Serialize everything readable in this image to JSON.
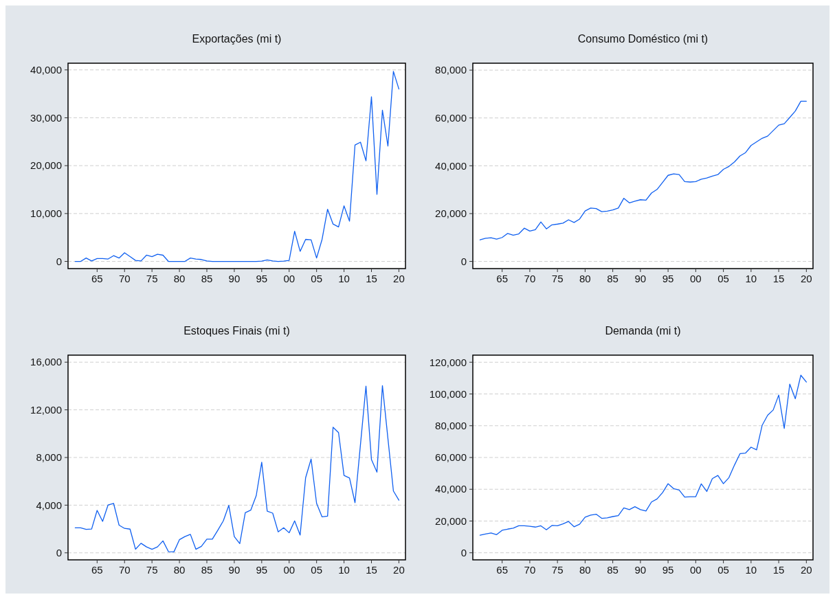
{
  "chart_data": [
    {
      "type": "line",
      "title": "Exportações (mi t)",
      "grid": "y",
      "x": [
        1961,
        1962,
        1963,
        1964,
        1965,
        1966,
        1967,
        1968,
        1969,
        1970,
        1971,
        1972,
        1973,
        1974,
        1975,
        1976,
        1977,
        1978,
        1979,
        1980,
        1981,
        1982,
        1983,
        1984,
        1985,
        1986,
        1987,
        1988,
        1989,
        1990,
        1991,
        1992,
        1993,
        1994,
        1995,
        1996,
        1997,
        1998,
        1999,
        2000,
        2001,
        2002,
        2003,
        2004,
        2005,
        2006,
        2007,
        2008,
        2009,
        2010,
        2011,
        2012,
        2013,
        2014,
        2015,
        2016,
        2017,
        2018,
        2019,
        2020
      ],
      "series": [
        {
          "color": "#1060f0",
          "values": [
            0,
            0,
            700,
            100,
            600,
            600,
            500,
            1200,
            700,
            1800,
            1000,
            200,
            100,
            1300,
            1000,
            1500,
            1300,
            0,
            0,
            0,
            0,
            700,
            500,
            400,
            100,
            0,
            0,
            0,
            0,
            0,
            0,
            0,
            0,
            0,
            50,
            300,
            100,
            0,
            50,
            200,
            6300,
            2100,
            4600,
            4500,
            700,
            4600,
            10900,
            7800,
            7200,
            11600,
            8400,
            24300,
            24900,
            21000,
            34400,
            14000,
            31600,
            24100,
            39700,
            36000
          ]
        }
      ],
      "xlim": [
        1959.7,
        2021.2
      ],
      "xticks": [
        {
          "value": 1965,
          "label": "65"
        },
        {
          "value": 1970,
          "label": "70"
        },
        {
          "value": 1975,
          "label": "75"
        },
        {
          "value": 1980,
          "label": "80"
        },
        {
          "value": 1985,
          "label": "85"
        },
        {
          "value": 1990,
          "label": "90"
        },
        {
          "value": 1995,
          "label": "95"
        },
        {
          "value": 2000,
          "label": "00"
        },
        {
          "value": 2005,
          "label": "05"
        },
        {
          "value": 2010,
          "label": "10"
        },
        {
          "value": 2015,
          "label": "15"
        },
        {
          "value": 2020,
          "label": "20"
        }
      ],
      "ylim": [
        -1500,
        41400
      ],
      "yticks": [
        {
          "value": 0,
          "label": "0"
        },
        {
          "value": 10000,
          "label": "10,000"
        },
        {
          "value": 20000,
          "label": "20,000"
        },
        {
          "value": 30000,
          "label": "30,000"
        },
        {
          "value": 40000,
          "label": "40,000"
        }
      ]
    },
    {
      "type": "line",
      "title": "Consumo Doméstico (mi t)",
      "grid": "y",
      "x": [
        1961,
        1962,
        1963,
        1964,
        1965,
        1966,
        1967,
        1968,
        1969,
        1970,
        1971,
        1972,
        1973,
        1974,
        1975,
        1976,
        1977,
        1978,
        1979,
        1980,
        1981,
        1982,
        1983,
        1984,
        1985,
        1986,
        1987,
        1988,
        1989,
        1990,
        1991,
        1992,
        1993,
        1994,
        1995,
        1996,
        1997,
        1998,
        1999,
        2000,
        2001,
        2002,
        2003,
        2004,
        2005,
        2006,
        2007,
        2008,
        2009,
        2010,
        2011,
        2012,
        2013,
        2014,
        2015,
        2016,
        2017,
        2018,
        2019,
        2020
      ],
      "series": [
        {
          "color": "#1060f0",
          "values": [
            9000,
            9700,
            9900,
            9300,
            10000,
            11700,
            11000,
            11500,
            13900,
            12700,
            13300,
            16500,
            13600,
            15300,
            15600,
            16000,
            17400,
            16300,
            17700,
            21100,
            22300,
            22100,
            20800,
            21000,
            21500,
            22300,
            26400,
            24500,
            25200,
            25800,
            25600,
            28600,
            30100,
            33000,
            36000,
            36600,
            36300,
            33400,
            33200,
            33400,
            34400,
            34900,
            35700,
            36300,
            38500,
            39700,
            41600,
            44100,
            45500,
            48500,
            50000,
            51500,
            52400,
            54700,
            57000,
            57600,
            60200,
            62900,
            67000,
            67000
          ]
        }
      ],
      "xlim": [
        1959.7,
        2021.2
      ],
      "xticks": [
        {
          "value": 1965,
          "label": "65"
        },
        {
          "value": 1970,
          "label": "70"
        },
        {
          "value": 1975,
          "label": "75"
        },
        {
          "value": 1980,
          "label": "80"
        },
        {
          "value": 1985,
          "label": "85"
        },
        {
          "value": 1990,
          "label": "90"
        },
        {
          "value": 1995,
          "label": "95"
        },
        {
          "value": 2000,
          "label": "00"
        },
        {
          "value": 2005,
          "label": "05"
        },
        {
          "value": 2010,
          "label": "10"
        },
        {
          "value": 2015,
          "label": "15"
        },
        {
          "value": 2020,
          "label": "20"
        }
      ],
      "ylim": [
        -3000,
        82900
      ],
      "yticks": [
        {
          "value": 0,
          "label": "0"
        },
        {
          "value": 20000,
          "label": "20,000"
        },
        {
          "value": 40000,
          "label": "40,000"
        },
        {
          "value": 60000,
          "label": "60,000"
        },
        {
          "value": 80000,
          "label": "80,000"
        }
      ]
    },
    {
      "type": "line",
      "title": "Estoques Finais (mi t)",
      "grid": "y",
      "x": [
        1961,
        1962,
        1963,
        1964,
        1965,
        1966,
        1967,
        1968,
        1969,
        1970,
        1971,
        1972,
        1973,
        1974,
        1975,
        1976,
        1977,
        1978,
        1979,
        1980,
        1981,
        1982,
        1983,
        1984,
        1985,
        1986,
        1987,
        1988,
        1989,
        1990,
        1991,
        1992,
        1993,
        1994,
        1995,
        1996,
        1997,
        1998,
        1999,
        2000,
        2001,
        2002,
        2003,
        2004,
        2005,
        2006,
        2007,
        2008,
        2009,
        2010,
        2011,
        2012,
        2013,
        2014,
        2015,
        2016,
        2017,
        2018,
        2019,
        2020
      ],
      "series": [
        {
          "color": "#1060f0",
          "values": [
            2100,
            2100,
            1970,
            2000,
            3560,
            2640,
            4020,
            4150,
            2320,
            2050,
            1990,
            300,
            800,
            500,
            300,
            500,
            1000,
            100,
            80,
            1100,
            1360,
            1550,
            300,
            540,
            1150,
            1150,
            1900,
            2680,
            3980,
            1360,
            770,
            3370,
            3580,
            4800,
            7600,
            3500,
            3330,
            1760,
            2100,
            1680,
            2680,
            1490,
            6300,
            7870,
            4150,
            3020,
            3080,
            10540,
            10090,
            6490,
            6280,
            4210,
            9100,
            13990,
            7830,
            6770,
            14030,
            9590,
            5190,
            4420
          ]
        }
      ],
      "xlim": [
        1959.7,
        2021.2
      ],
      "xticks": [
        {
          "value": 1965,
          "label": "65"
        },
        {
          "value": 1970,
          "label": "70"
        },
        {
          "value": 1975,
          "label": "75"
        },
        {
          "value": 1980,
          "label": "80"
        },
        {
          "value": 1985,
          "label": "85"
        },
        {
          "value": 1990,
          "label": "90"
        },
        {
          "value": 1995,
          "label": "95"
        },
        {
          "value": 2000,
          "label": "00"
        },
        {
          "value": 2005,
          "label": "05"
        },
        {
          "value": 2010,
          "label": "10"
        },
        {
          "value": 2015,
          "label": "15"
        },
        {
          "value": 2020,
          "label": "20"
        }
      ],
      "ylim": [
        -590,
        16590
      ],
      "yticks": [
        {
          "value": 0,
          "label": "0"
        },
        {
          "value": 4000,
          "label": "4,000"
        },
        {
          "value": 8000,
          "label": "8,000"
        },
        {
          "value": 12000,
          "label": "12,000"
        },
        {
          "value": 16000,
          "label": "16,000"
        }
      ]
    },
    {
      "type": "line",
      "title": "Demanda (mi t)",
      "grid": "y",
      "x": [
        1961,
        1962,
        1963,
        1964,
        1965,
        1966,
        1967,
        1968,
        1969,
        1970,
        1971,
        1972,
        1973,
        1974,
        1975,
        1976,
        1977,
        1978,
        1979,
        1980,
        1981,
        1982,
        1983,
        1984,
        1985,
        1986,
        1987,
        1988,
        1989,
        1990,
        1991,
        1992,
        1993,
        1994,
        1995,
        1996,
        1997,
        1998,
        1999,
        2000,
        2001,
        2002,
        2003,
        2004,
        2005,
        2006,
        2007,
        2008,
        2009,
        2010,
        2011,
        2012,
        2013,
        2014,
        2015,
        2016,
        2017,
        2018,
        2019,
        2020
      ],
      "series": [
        {
          "color": "#1060f0",
          "values": [
            11100,
            11800,
            12500,
            11400,
            14200,
            14900,
            15500,
            17000,
            17000,
            16700,
            16200,
            17000,
            14500,
            17200,
            17000,
            18200,
            19700,
            16400,
            18000,
            22400,
            23700,
            24300,
            21700,
            22000,
            22800,
            23400,
            28300,
            27200,
            29000,
            27200,
            26300,
            32000,
            33900,
            37900,
            43500,
            40400,
            39500,
            35100,
            35300,
            35300,
            43400,
            38600,
            46700,
            48700,
            43500,
            47300,
            55200,
            62400,
            62800,
            66500,
            64800,
            80200,
            86600,
            89900,
            99300,
            78300,
            106200,
            97000,
            111800,
            107500
          ]
        }
      ],
      "xlim": [
        1959.7,
        2021.2
      ],
      "xticks": [
        {
          "value": 1965,
          "label": "65"
        },
        {
          "value": 1970,
          "label": "70"
        },
        {
          "value": 1975,
          "label": "75"
        },
        {
          "value": 1980,
          "label": "80"
        },
        {
          "value": 1985,
          "label": "85"
        },
        {
          "value": 1990,
          "label": "90"
        },
        {
          "value": 1995,
          "label": "95"
        },
        {
          "value": 2000,
          "label": "00"
        },
        {
          "value": 2005,
          "label": "05"
        },
        {
          "value": 2010,
          "label": "10"
        },
        {
          "value": 2015,
          "label": "15"
        },
        {
          "value": 2020,
          "label": "20"
        }
      ],
      "ylim": [
        -4450,
        124450
      ],
      "yticks": [
        {
          "value": 0,
          "label": "0"
        },
        {
          "value": 20000,
          "label": "20,000"
        },
        {
          "value": 40000,
          "label": "40,000"
        },
        {
          "value": 60000,
          "label": "60,000"
        },
        {
          "value": 80000,
          "label": "80,000"
        },
        {
          "value": 100000,
          "label": "100,000"
        },
        {
          "value": 120000,
          "label": "120,000"
        }
      ]
    }
  ]
}
